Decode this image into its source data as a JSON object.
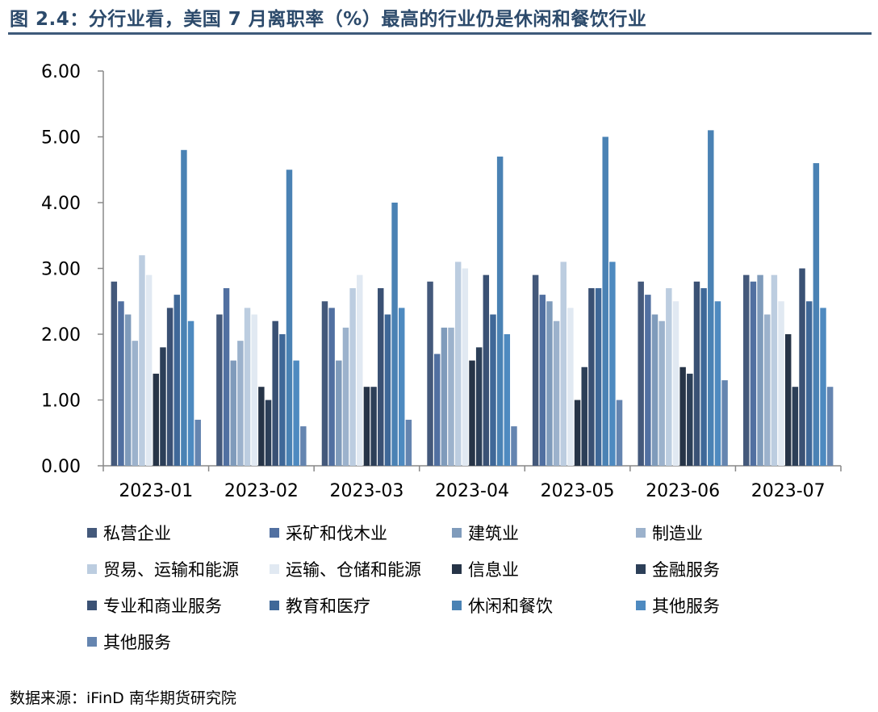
{
  "title": "图 2.4：分行业看，美国 7 月离职率（%）最高的行业仍是休闲和餐饮行业",
  "source": "数据来源：iFinD 南华期货研究院",
  "chart_data": {
    "type": "bar",
    "title": "图 2.4：分行业看，美国 7 月离职率（%）最高的行业仍是休闲和餐饮行业",
    "xlabel": "",
    "ylabel": "",
    "ylim": [
      0,
      6
    ],
    "y_ticks": [
      "0.00",
      "1.00",
      "2.00",
      "3.00",
      "4.00",
      "5.00",
      "6.00"
    ],
    "grid": false,
    "legend_position": "bottom",
    "categories": [
      "2023-01",
      "2023-02",
      "2023-03",
      "2023-04",
      "2023-05",
      "2023-06",
      "2023-07"
    ],
    "series": [
      {
        "name": "私营企业",
        "color": "#44597b",
        "values": [
          2.8,
          2.3,
          2.5,
          2.8,
          2.9,
          2.8,
          2.9
        ]
      },
      {
        "name": "采矿和伐木业",
        "color": "#5170a1",
        "values": [
          2.5,
          2.7,
          2.4,
          1.7,
          2.6,
          2.6,
          2.8
        ]
      },
      {
        "name": "建筑业",
        "color": "#7f9bbb",
        "values": [
          2.3,
          1.6,
          1.6,
          2.1,
          2.5,
          2.3,
          2.9
        ]
      },
      {
        "name": "制造业",
        "color": "#9cb2cc",
        "values": [
          1.9,
          1.9,
          2.1,
          2.1,
          2.2,
          2.2,
          2.3
        ]
      },
      {
        "name": "贸易、运输和能源",
        "color": "#bccde0",
        "values": [
          3.2,
          2.4,
          2.7,
          3.1,
          3.1,
          2.7,
          2.9
        ]
      },
      {
        "name": "运输、仓储和能源",
        "color": "#e1e9f2",
        "values": [
          2.9,
          2.3,
          2.9,
          3.0,
          2.4,
          2.5,
          2.5
        ]
      },
      {
        "name": "信息业",
        "color": "#263447",
        "values": [
          1.4,
          1.2,
          1.2,
          1.6,
          1.0,
          1.5,
          2.0
        ]
      },
      {
        "name": "金融服务",
        "color": "#2c3f58",
        "values": [
          1.8,
          1.0,
          1.2,
          1.8,
          1.5,
          1.4,
          1.2
        ]
      },
      {
        "name": "专业和商业服务",
        "color": "#3a5174",
        "values": [
          2.4,
          2.2,
          2.7,
          2.9,
          2.7,
          2.8,
          3.0
        ]
      },
      {
        "name": "教育和医疗",
        "color": "#3f6898",
        "values": [
          2.6,
          2.0,
          2.3,
          2.3,
          2.7,
          2.7,
          2.5
        ]
      },
      {
        "name": "休闲和餐饮",
        "color": "#4a82b4",
        "values": [
          4.8,
          4.5,
          4.0,
          4.7,
          5.0,
          5.1,
          4.6
        ]
      },
      {
        "name": "其他服务",
        "color": "#4e8ac0",
        "values": [
          2.2,
          1.6,
          2.4,
          2.0,
          3.1,
          2.5,
          2.4
        ]
      },
      {
        "name": "其他服务",
        "color": "#6585b0",
        "values": [
          0.7,
          0.6,
          0.7,
          0.6,
          1.0,
          1.3,
          1.2
        ]
      }
    ]
  }
}
